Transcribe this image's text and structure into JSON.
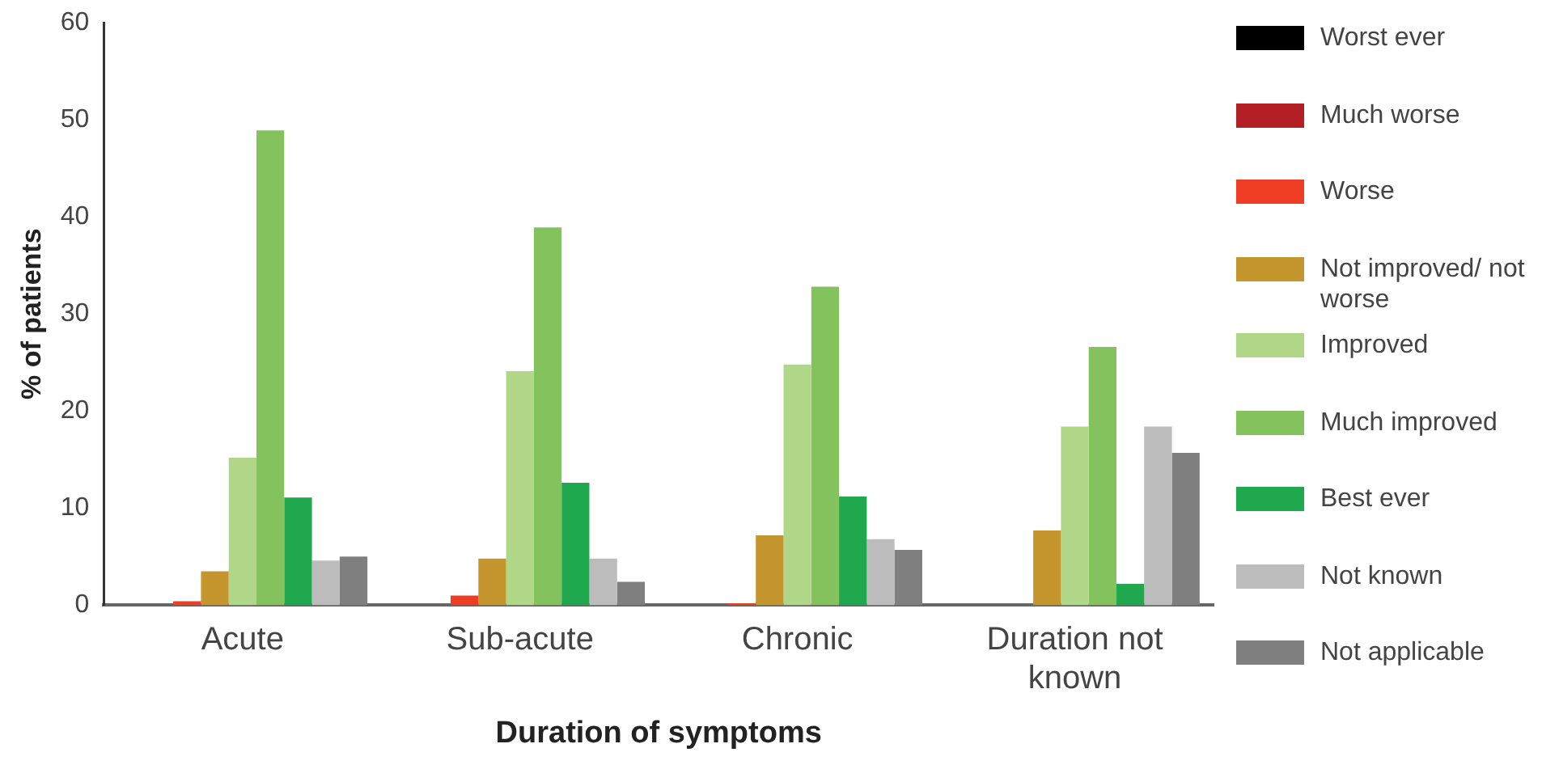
{
  "chart_data": {
    "type": "bar",
    "xlabel": "Duration of symptoms",
    "ylabel": "% of patients",
    "categories": [
      "Acute",
      "Sub-acute",
      "Chronic",
      "Duration not known"
    ],
    "ylim": [
      0,
      60
    ],
    "yticks": [
      0,
      10,
      20,
      30,
      40,
      50,
      60
    ],
    "grid": false,
    "legend": "right",
    "series": [
      {
        "name": "Worst ever",
        "color": "#000000",
        "values": [
          0,
          0,
          0,
          0
        ]
      },
      {
        "name": "Much worse",
        "color": "#b21f24",
        "values": [
          0,
          0,
          0,
          0
        ]
      },
      {
        "name": "Worse",
        "color": "#ee3d23",
        "values": [
          0.4,
          1.0,
          0.2,
          0
        ]
      },
      {
        "name": "Not improved/ not worse",
        "color": "#c4962d",
        "values": [
          3.5,
          4.8,
          7.2,
          7.7
        ]
      },
      {
        "name": "Improved",
        "color": "#b0d787",
        "values": [
          15.2,
          24.1,
          24.8,
          18.4
        ]
      },
      {
        "name": "Much improved",
        "color": "#84c25e",
        "values": [
          48.9,
          38.9,
          32.8,
          26.6
        ]
      },
      {
        "name": "Best ever",
        "color": "#1fa84d",
        "values": [
          11.1,
          12.6,
          11.2,
          2.2
        ]
      },
      {
        "name": "Not known",
        "color": "#bcbcbc",
        "values": [
          4.6,
          4.8,
          6.8,
          18.4
        ]
      },
      {
        "name": "Not applicable",
        "color": "#7f7f7f",
        "values": [
          5.0,
          2.4,
          5.7,
          15.7
        ]
      }
    ]
  }
}
